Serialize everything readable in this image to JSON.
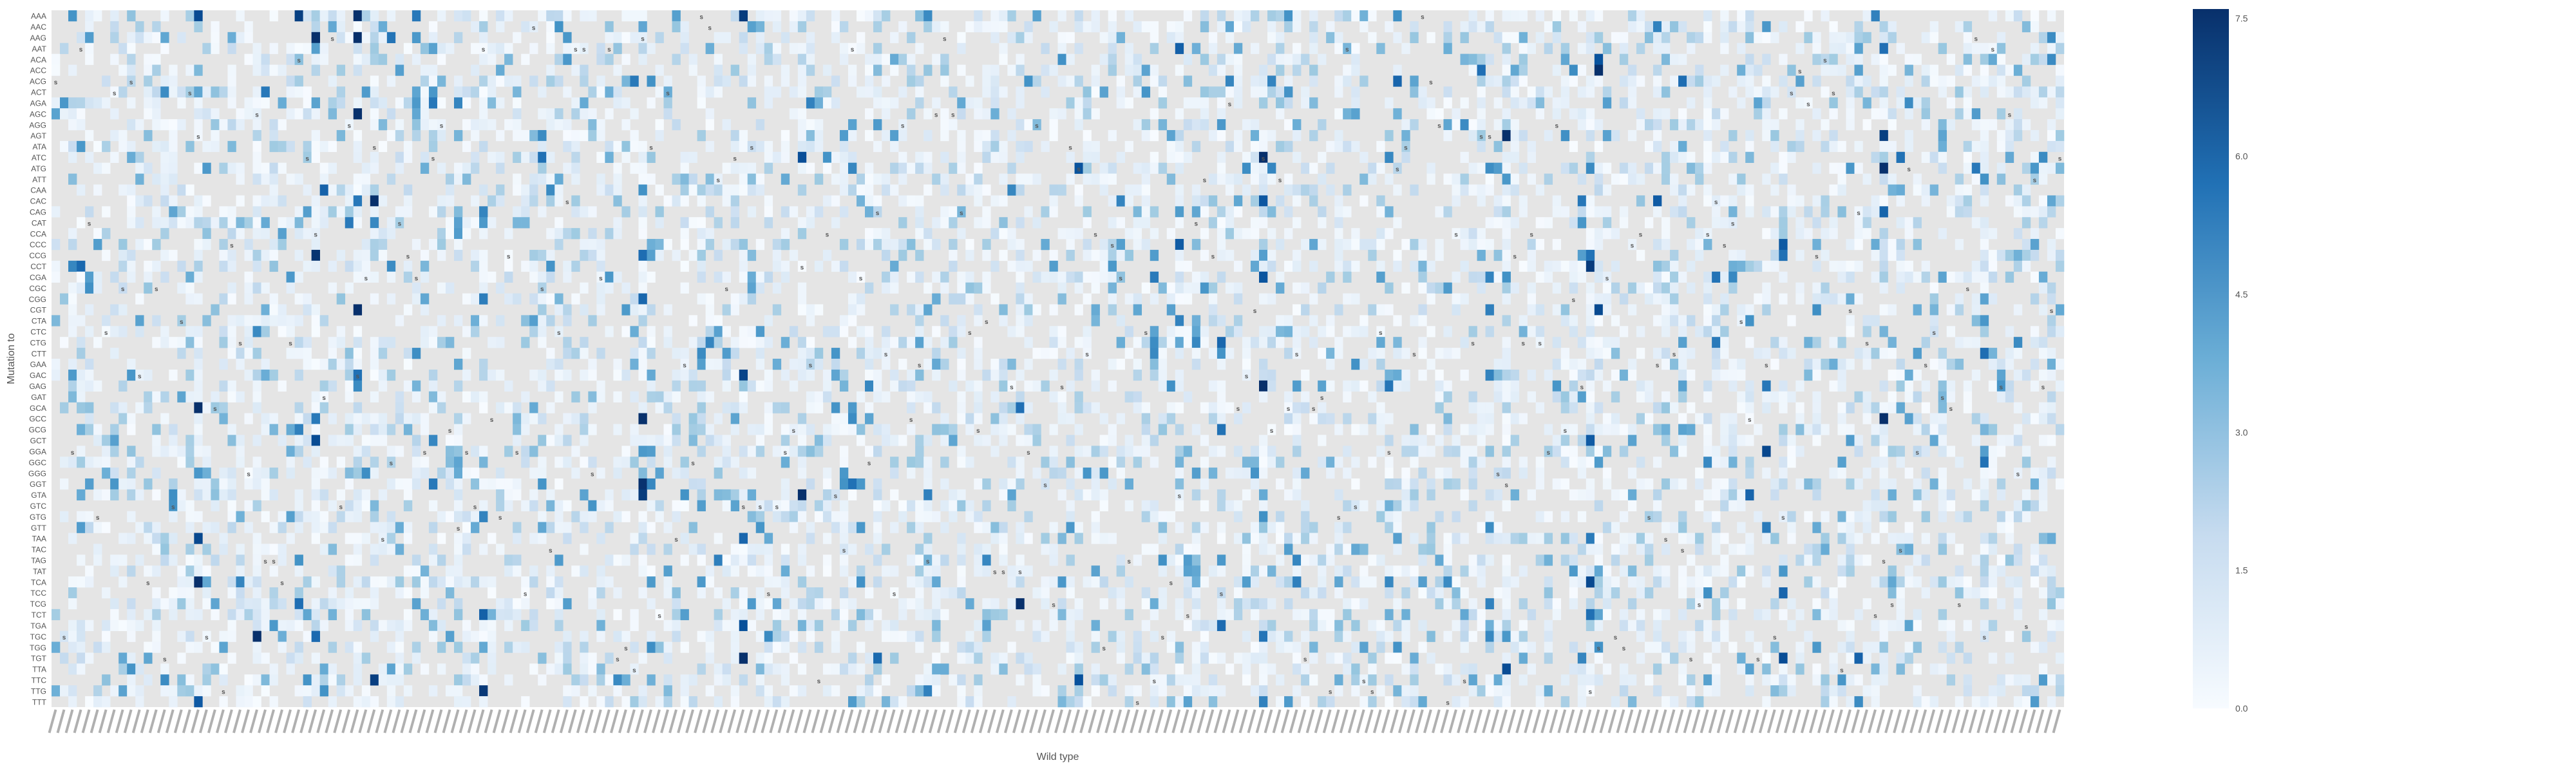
{
  "chart_data": {
    "type": "heatmap",
    "title": "",
    "xlabel": "Wild type",
    "ylabel": "Mutation to",
    "row_labels": [
      "AAA",
      "AAC",
      "AAG",
      "AAT",
      "ACA",
      "ACC",
      "ACG",
      "ACT",
      "AGA",
      "AGC",
      "AGG",
      "AGT",
      "ATA",
      "ATC",
      "ATG",
      "ATT",
      "CAA",
      "CAC",
      "CAG",
      "CAT",
      "CCA",
      "CCC",
      "CCG",
      "CCT",
      "CGA",
      "CGC",
      "CGG",
      "CGT",
      "CTA",
      "CTC",
      "CTG",
      "CTT",
      "GAA",
      "GAC",
      "GAG",
      "GAT",
      "GCA",
      "GCC",
      "GCG",
      "GCT",
      "GGA",
      "GGC",
      "GGG",
      "GGT",
      "GTA",
      "GTC",
      "GTG",
      "GTT",
      "TAA",
      "TAC",
      "TAG",
      "TAT",
      "TCA",
      "TCC",
      "TCG",
      "TCT",
      "TGA",
      "TGC",
      "TGG",
      "TGT",
      "TTA",
      "TTC",
      "TTG",
      "TTT"
    ],
    "column_label_note": "",
    "num_columns": 240,
    "colorbar": {
      "ticks": [
        0.0,
        1.5,
        3.0,
        4.5,
        6.0,
        7.5
      ],
      "tick_labels": [
        "0.0",
        "1.5",
        "3.0",
        "4.5",
        "6.0",
        "7.5"
      ],
      "vmin": 0.0,
      "vmax": 7.6,
      "colormap": "Blues"
    },
    "missing_color": "#e5e5e5",
    "synonymous_marker": "s",
    "grid": false
  }
}
